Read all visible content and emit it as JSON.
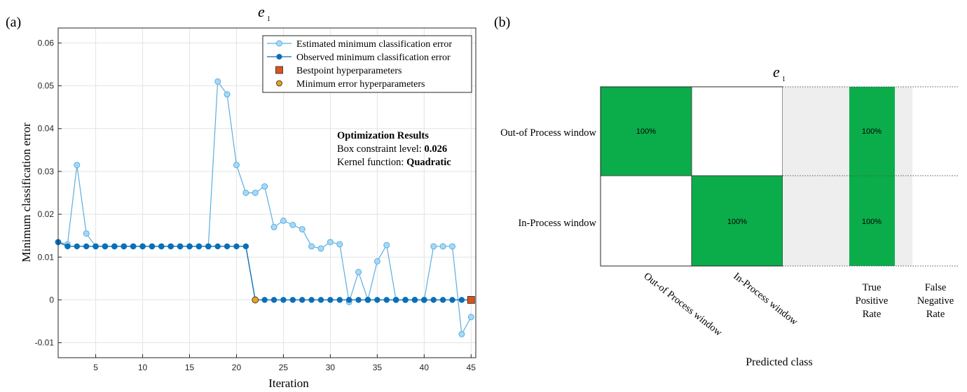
{
  "panel_a": {
    "label": "(a)",
    "title_main": "e",
    "title_sub": "1"
  },
  "panel_b": {
    "label": "(b)",
    "title_main": "e",
    "title_sub": "1"
  },
  "colors": {
    "estimated": "#5aaee0",
    "estimated_fill": "#a9d8f5",
    "observed": "#0b6fb7",
    "bestpoint": "#d9541a",
    "minimum": "#e9a21c",
    "green": "#0aad4a",
    "gray_cell": "#eeeeee",
    "grid": "#e3e3e3"
  },
  "chart_data": [
    {
      "type": "line",
      "xlabel": "Iteration",
      "ylabel": "Minimum classification error",
      "xlim": [
        1,
        45.5
      ],
      "ylim": [
        -0.0135,
        0.0635
      ],
      "xticks": [
        5,
        10,
        15,
        20,
        25,
        30,
        35,
        40,
        45
      ],
      "yticks": [
        -0.01,
        0,
        0.01,
        0.02,
        0.03,
        0.04,
        0.05,
        0.06
      ],
      "ytick_labels": [
        "-0.01",
        "0",
        "0.01",
        "0.02",
        "0.03",
        "0.04",
        "0.05",
        "0.06"
      ],
      "grid": true,
      "legend_position": "top-right",
      "series": [
        {
          "name": "Estimated minimum classification error",
          "x": [
            1,
            2,
            3,
            4,
            5,
            6,
            7,
            8,
            9,
            10,
            11,
            12,
            13,
            14,
            15,
            16,
            17,
            18,
            19,
            20,
            21,
            22,
            23,
            24,
            25,
            26,
            27,
            28,
            29,
            30,
            31,
            32,
            33,
            34,
            35,
            36,
            37,
            38,
            39,
            40,
            41,
            42,
            43,
            44,
            45
          ],
          "values": [
            0.0135,
            0.013,
            0.0315,
            0.0155,
            0.0125,
            0.0125,
            0.0125,
            0.0125,
            0.0125,
            0.0125,
            0.0125,
            0.0125,
            0.0125,
            0.0125,
            0.0125,
            0.0125,
            0.0125,
            0.051,
            0.048,
            0.0315,
            0.025,
            0.025,
            0.0265,
            0.017,
            0.0185,
            0.0175,
            0.0165,
            0.0125,
            0.012,
            0.0135,
            0.013,
            -0.0005,
            0.0065,
            0.0,
            0.009,
            0.0128,
            0.0,
            0.0,
            0.0,
            0.0,
            0.0125,
            0.0125,
            0.0125,
            -0.008,
            -0.004
          ]
        },
        {
          "name": "Observed minimum classification error",
          "x": [
            1,
            2,
            3,
            4,
            5,
            6,
            7,
            8,
            9,
            10,
            11,
            12,
            13,
            14,
            15,
            16,
            17,
            18,
            19,
            20,
            21,
            22,
            23,
            24,
            25,
            26,
            27,
            28,
            29,
            30,
            31,
            32,
            33,
            34,
            35,
            36,
            37,
            38,
            39,
            40,
            41,
            42,
            43,
            44,
            45
          ],
          "values": [
            0.0135,
            0.0125,
            0.0125,
            0.0125,
            0.0125,
            0.0125,
            0.0125,
            0.0125,
            0.0125,
            0.0125,
            0.0125,
            0.0125,
            0.0125,
            0.0125,
            0.0125,
            0.0125,
            0.0125,
            0.0125,
            0.0125,
            0.0125,
            0.0125,
            0,
            0,
            0,
            0,
            0,
            0,
            0,
            0,
            0,
            0,
            0,
            0,
            0,
            0,
            0,
            0,
            0,
            0,
            0,
            0,
            0,
            0,
            0,
            0
          ]
        },
        {
          "name": "Bestpoint hyperparameters",
          "x": [
            45
          ],
          "values": [
            0
          ]
        },
        {
          "name": "Minimum error hyperparameters",
          "x": [
            22
          ],
          "values": [
            0
          ]
        }
      ],
      "annotation": {
        "heading": "Optimization Results",
        "line1_label": "Box constraint level: ",
        "line1_value": "0.026",
        "line2_label": "Kernel function: ",
        "line2_value": "Quadratic"
      }
    },
    {
      "type": "heatmap",
      "xlabel": "Predicted class",
      "rows": [
        "Out-of Process window",
        "In-Process window"
      ],
      "columns": [
        "Out-of Process window",
        "In-Process window"
      ],
      "values": [
        [
          "100%",
          ""
        ],
        [
          "",
          "100%"
        ]
      ],
      "rate_columns": [
        {
          "line1": "True",
          "line2": "Positive",
          "line3": "Rate",
          "values": [
            "100%",
            "100%"
          ]
        },
        {
          "line1": "False",
          "line2": "Negative",
          "line3": "Rate",
          "values": [
            "",
            ""
          ]
        }
      ]
    }
  ]
}
